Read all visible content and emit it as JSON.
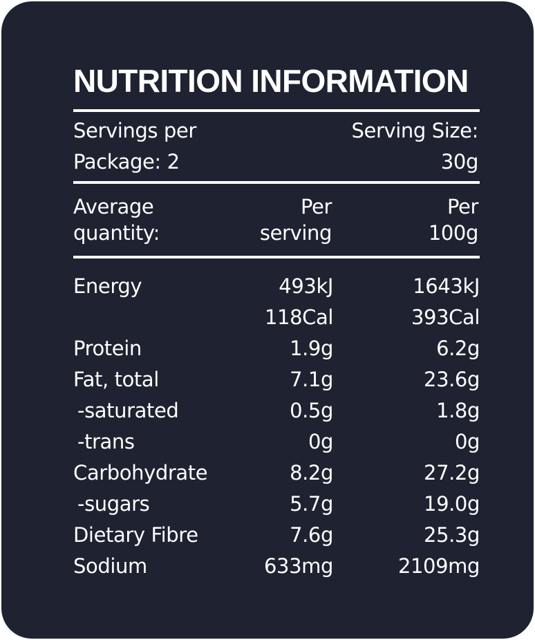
{
  "title": "NUTRITION INFORMATION",
  "servings": {
    "servings_line1": "Servings per",
    "servings_line2": "Package: 2",
    "size_line1": "Serving Size:",
    "size_line2": "30g"
  },
  "header": {
    "avg_line1": "Average",
    "avg_line2": "quantity:",
    "per_serving_line1": "Per",
    "per_serving_line2": "serving",
    "per_100g_line1": "Per",
    "per_100g_line2": "100g"
  },
  "rows": [
    {
      "name": "Energy",
      "per_serving": "493kJ",
      "per_100g": "1643kJ"
    },
    {
      "name": "",
      "per_serving": "118Cal",
      "per_100g": "393Cal"
    },
    {
      "name": "Protein",
      "per_serving": "1.9g",
      "per_100g": "6.2g"
    },
    {
      "name": "Fat, total",
      "per_serving": "7.1g",
      "per_100g": "23.6g"
    },
    {
      "name": "-saturated",
      "per_serving": "0.5g",
      "per_100g": "1.8g"
    },
    {
      "name": "-trans",
      "per_serving": "0g",
      "per_100g": "0g"
    },
    {
      "name": "Carbohydrate",
      "per_serving": "8.2g",
      "per_100g": "27.2g"
    },
    {
      "name": "-sugars",
      "per_serving": "5.7g",
      "per_100g": "19.0g"
    },
    {
      "name": "Dietary Fibre",
      "per_serving": "7.6g",
      "per_100g": "25.3g"
    },
    {
      "name": "Sodium",
      "per_serving": "633mg",
      "per_100g": "2109mg"
    }
  ],
  "colors": {
    "panel_background": "#1f2230",
    "text": "#ffffff"
  }
}
